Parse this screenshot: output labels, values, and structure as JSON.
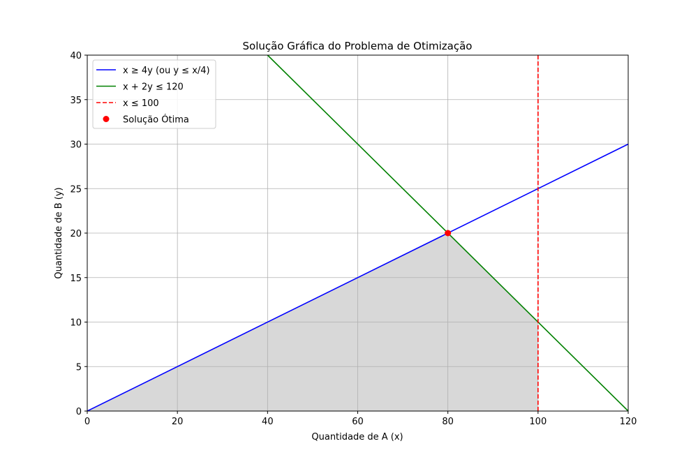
{
  "chart_data": {
    "type": "line",
    "title": "Solução Gráfica do Problema de Otimização",
    "xlabel": "Quantidade de A (x)",
    "ylabel": "Quantidade de B (y)",
    "xlim": [
      0,
      120
    ],
    "ylim": [
      0,
      40
    ],
    "x_ticks": [
      0,
      20,
      40,
      60,
      80,
      100,
      120
    ],
    "y_ticks": [
      0,
      5,
      10,
      15,
      20,
      25,
      30,
      35,
      40
    ],
    "grid": true,
    "legend_position": "top-left",
    "series": [
      {
        "name": "x ≥ 4y (ou y ≤ x/4)",
        "color": "#0000ff",
        "style": "solid",
        "x": [
          0,
          120
        ],
        "y": [
          0,
          30
        ]
      },
      {
        "name": "x + 2y ≤ 120",
        "color": "#008000",
        "style": "solid",
        "x": [
          40,
          120
        ],
        "y": [
          40,
          0
        ]
      },
      {
        "name": "x ≤ 100",
        "color": "#ff0000",
        "style": "dashed",
        "x": [
          100,
          100
        ],
        "y": [
          0,
          40
        ]
      }
    ],
    "optimal_point": {
      "name": "Solução Ótima",
      "color": "#ff0000",
      "x": 80,
      "y": 20
    },
    "feasible_region": {
      "color": "#d8d8d8",
      "x": [
        0,
        80,
        100,
        100,
        0
      ],
      "y": [
        0,
        20,
        10,
        0,
        0
      ]
    }
  }
}
